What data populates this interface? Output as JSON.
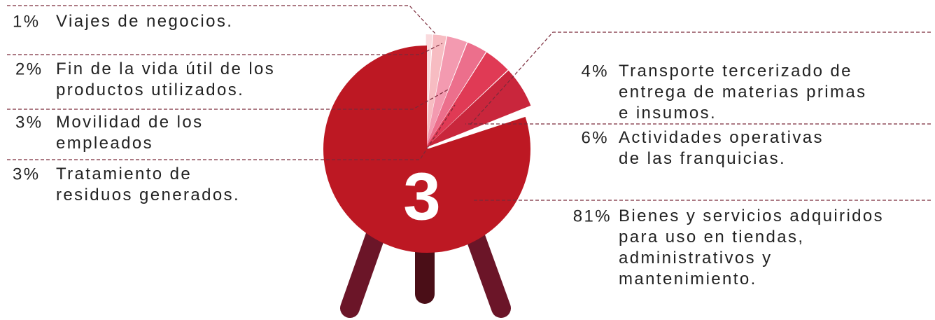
{
  "chart_data": {
    "type": "pie",
    "center_label": "3",
    "categories": [
      "Viajes de negocios.",
      "Fin de la vida útil de los\nproductos utilizados.",
      "Movilidad de los\nempleados",
      "Tratamiento de\nresiduos generados.",
      "Transporte tercerizado de\nentrega de materias primas\ne insumos.",
      "Actividades operativas\nde las franquicias.",
      "Bienes y servicios adquiridos\npara uso en tiendas,\nadministrativos y\nmantenimiento."
    ],
    "values": [
      1,
      2,
      3,
      3,
      4,
      6,
      81
    ],
    "value_labels": [
      "1%",
      "2%",
      "3%",
      "3%",
      "4%",
      "6%",
      "81%"
    ],
    "colors": [
      "#fadadd",
      "#f7bcc2",
      "#f39ab0",
      "#ec6f8c",
      "#e03a55",
      "#c9263c",
      "#bd1823"
    ]
  }
}
